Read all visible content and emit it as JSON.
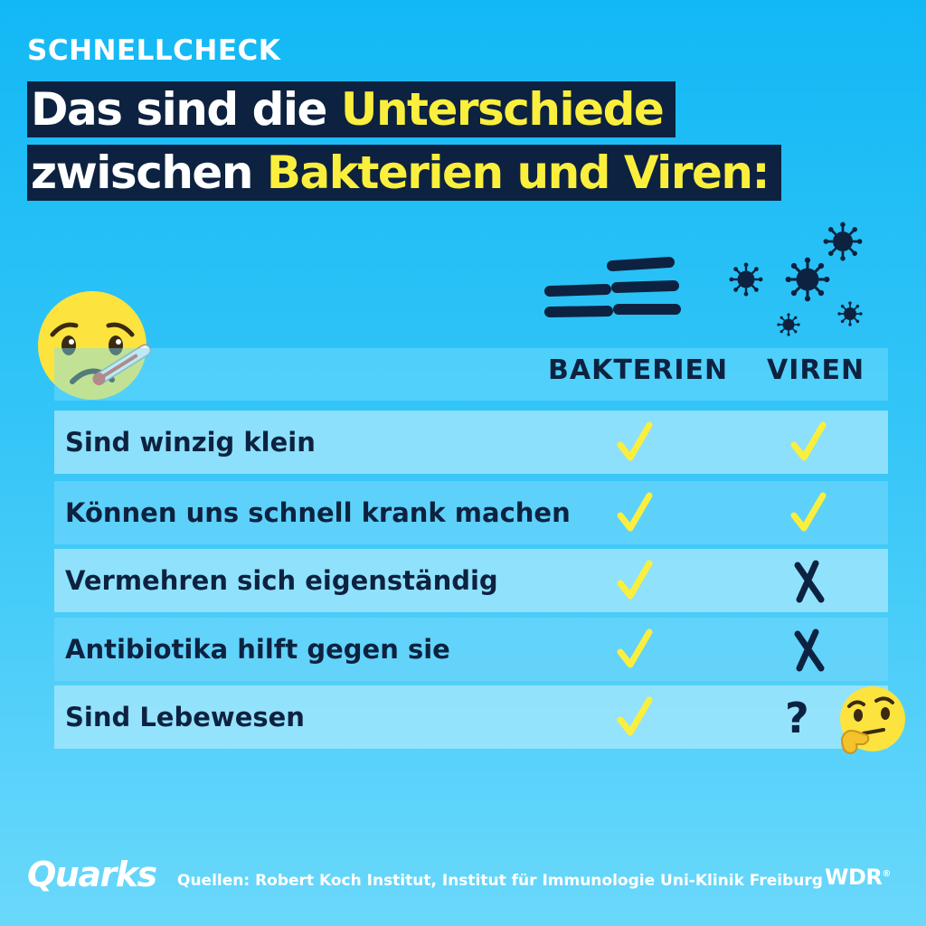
{
  "kicker": "SCHNELLCHECK",
  "headline": {
    "line1_white": "Das sind die ",
    "line1_yellow": "Unterschiede",
    "line2_white": "zwischen ",
    "line2_yellow": "Bakterien und Viren:"
  },
  "table": {
    "columns": [
      "BAKTERIEN",
      "VIREN"
    ],
    "rows": [
      {
        "label": "Sind winzig klein",
        "bakterien": "check",
        "viren": "check"
      },
      {
        "label": "Können uns schnell krank machen",
        "bakterien": "check",
        "viren": "check"
      },
      {
        "label": "Vermehren sich eigenständig",
        "bakterien": "check",
        "viren": "cross"
      },
      {
        "label": "Antibiotika hilft gegen sie",
        "bakterien": "check",
        "viren": "cross"
      },
      {
        "label": "Sind Lebewesen",
        "bakterien": "check",
        "viren": "?"
      }
    ]
  },
  "footer": {
    "logo": "Quarks",
    "sources": "Quellen: Robert Koch Institut, Institut für Immunologie Uni-Klinik Freiburg",
    "broadcaster": "WDR"
  },
  "icons": {
    "bacteria": "bacteria-icon",
    "virus": "virus-icon",
    "sick": "sick-face-thermometer-icon",
    "thinking": "thinking-face-icon",
    "check": "check-icon",
    "cross": "cross-icon"
  },
  "colors": {
    "background": "#12b8f5",
    "navy": "#0d2240",
    "yellow": "#fbef3e",
    "white": "#ffffff"
  }
}
